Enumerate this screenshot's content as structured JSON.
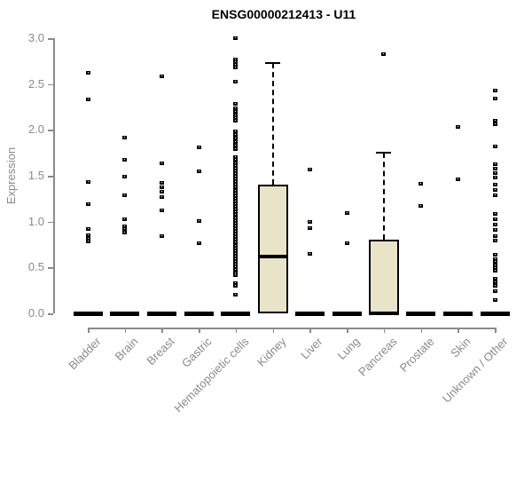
{
  "colors": {
    "box_fill": "#e9e3c7",
    "axis_gray": "#8a8a8a",
    "data_black": "#000000",
    "background": "#ffffff"
  },
  "chart_data": {
    "type": "boxplot",
    "title": "ENSG00000212413 - U11",
    "xlabel": "",
    "ylabel": "Expression",
    "ylim": [
      0,
      3.0
    ],
    "grid": false,
    "ytick_labels": [
      "0.0",
      "0.5",
      "1.0",
      "1.5",
      "2.0",
      "2.5",
      "3.0"
    ],
    "categories": [
      "Bladder",
      "Brain",
      "Breast",
      "Gastric",
      "Hematopoietic cells",
      "Kidney",
      "Liver",
      "Lung",
      "Pancreas",
      "Prostate",
      "Skin",
      "Unknown / Other"
    ],
    "series": [
      {
        "name": "Bladder",
        "box": {
          "q1": 0,
          "median": 0,
          "q3": 0,
          "whisker_low": 0,
          "whisker_high": 0
        },
        "outliers": [
          2.62,
          2.33,
          1.43,
          1.19,
          0.92,
          0.85,
          0.81,
          0.78
        ]
      },
      {
        "name": "Brain",
        "box": {
          "q1": 0,
          "median": 0,
          "q3": 0,
          "whisker_low": 0,
          "whisker_high": 0
        },
        "outliers": [
          1.92,
          1.67,
          1.49,
          1.29,
          1.03,
          0.95,
          0.92,
          0.88
        ]
      },
      {
        "name": "Breast",
        "box": {
          "q1": 0,
          "median": 0,
          "q3": 0,
          "whisker_low": 0,
          "whisker_high": 0
        },
        "outliers": [
          2.58,
          1.64,
          1.42,
          1.37,
          1.33,
          1.27,
          1.12,
          0.84
        ]
      },
      {
        "name": "Gastric",
        "box": {
          "q1": 0,
          "median": 0,
          "q3": 0,
          "whisker_low": 0,
          "whisker_high": 0
        },
        "outliers": [
          1.81,
          1.55,
          1.01,
          0.76
        ]
      },
      {
        "name": "Hematopoietic cells",
        "box": {
          "q1": 0,
          "median": 0,
          "q3": 0,
          "whisker_low": 0,
          "whisker_high": 0
        },
        "outliers": [
          3.0,
          2.77,
          2.74,
          2.71,
          2.68,
          2.53,
          2.28,
          2.24,
          2.2,
          2.16,
          2.13,
          2.1,
          1.98,
          1.95,
          1.91,
          1.87,
          1.83,
          1.79,
          1.7,
          1.67,
          1.64,
          1.61,
          1.58,
          1.55,
          1.52,
          1.49,
          1.46,
          1.43,
          1.4,
          1.37,
          1.34,
          1.31,
          1.28,
          1.25,
          1.22,
          1.19,
          1.16,
          1.13,
          1.1,
          1.07,
          1.04,
          1.01,
          0.98,
          0.95,
          0.92,
          0.89,
          0.86,
          0.83,
          0.8,
          0.77,
          0.74,
          0.71,
          0.68,
          0.65,
          0.62,
          0.59,
          0.56,
          0.53,
          0.5,
          0.47,
          0.44,
          0.42,
          0.33,
          0.3,
          0.2
        ]
      },
      {
        "name": "Kidney",
        "box": {
          "q1": 0,
          "median": 0.62,
          "q3": 1.4,
          "whisker_low": 0,
          "whisker_high": 2.73
        },
        "outliers": []
      },
      {
        "name": "Liver",
        "box": {
          "q1": 0,
          "median": 0,
          "q3": 0,
          "whisker_low": 0,
          "whisker_high": 0
        },
        "outliers": [
          1.57,
          1.0,
          0.93,
          0.65
        ]
      },
      {
        "name": "Lung",
        "box": {
          "q1": 0,
          "median": 0,
          "q3": 0,
          "whisker_low": 0,
          "whisker_high": 0
        },
        "outliers": [
          1.09,
          0.76
        ]
      },
      {
        "name": "Pancreas",
        "box": {
          "q1": 0,
          "median": 0,
          "q3": 0.8,
          "whisker_low": 0,
          "whisker_high": 1.75
        },
        "outliers": [
          2.83
        ]
      },
      {
        "name": "Prostate",
        "box": {
          "q1": 0,
          "median": 0,
          "q3": 0,
          "whisker_low": 0,
          "whisker_high": 0
        },
        "outliers": [
          1.41,
          1.17
        ]
      },
      {
        "name": "Skin",
        "box": {
          "q1": 0,
          "median": 0,
          "q3": 0,
          "whisker_low": 0,
          "whisker_high": 0
        },
        "outliers": [
          2.03,
          1.46
        ]
      },
      {
        "name": "Unknown / Other",
        "box": {
          "q1": 0,
          "median": 0,
          "q3": 0,
          "whisker_low": 0,
          "whisker_high": 0
        },
        "outliers": [
          2.43,
          2.34,
          2.1,
          2.06,
          1.82,
          1.63,
          1.58,
          1.53,
          1.48,
          1.4,
          1.35,
          1.29,
          1.08,
          1.03,
          0.97,
          0.91,
          0.84,
          0.79,
          0.64,
          0.59,
          0.56,
          0.52,
          0.49,
          0.46,
          0.38,
          0.34,
          0.3,
          0.24,
          0.15
        ]
      }
    ]
  }
}
